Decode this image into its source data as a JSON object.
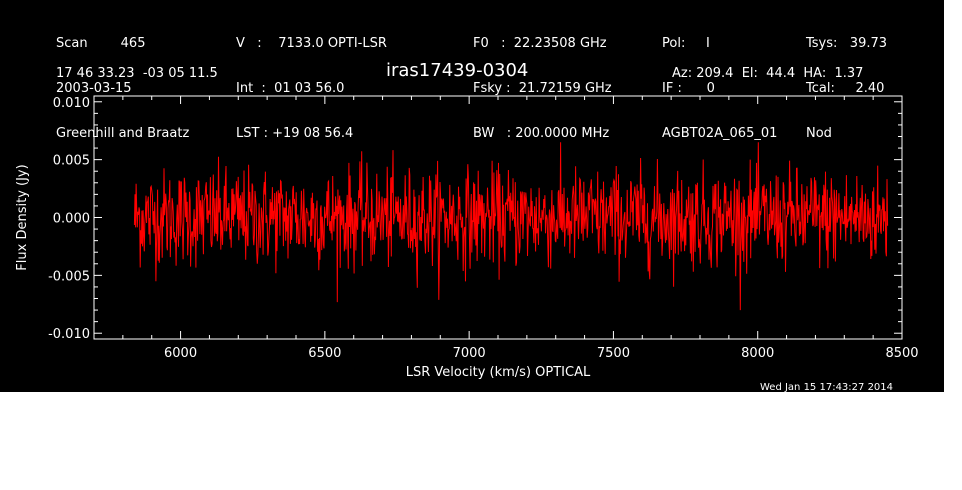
{
  "header": {
    "col1": [
      "Scan        465",
      "2003-03-15",
      "Greenhill and Braatz"
    ],
    "col2": [
      "V   :    7133.0 OPTI-LSR",
      "Int  :  01 03 56.0",
      "LST : +19 08 56.4"
    ],
    "col3": [
      "F0   :  22.23508 GHz",
      "Fsky :  21.72159 GHz",
      "BW   : 200.0000 MHz"
    ],
    "col4": [
      "Pol:     I",
      "IF :      0",
      "AGBT02A_065_01"
    ],
    "col5": [
      "Tsys:   39.73",
      "Tcal:     2.40",
      "Nod"
    ],
    "coords": "17 46 33.23  -03 05 11.5",
    "source": "iras17439-0304",
    "azel": "Az: 209.4  El:  44.4  HA:  1.37",
    "timestamp": "Wed Jan 15 17:43:27 2014"
  },
  "colors": {
    "background": "#000000",
    "axes": "#ffffff",
    "trace": "#ff0000"
  },
  "chart_data": {
    "type": "line",
    "xlabel": "LSR Velocity (km/s) OPTICAL",
    "ylabel": "Flux Density (Jy)",
    "xlim": [
      5700,
      8500
    ],
    "ylim": [
      -0.0105,
      0.0105
    ],
    "xticks": [
      6000,
      6500,
      7000,
      7500,
      8000,
      8500
    ],
    "xtick_labels": [
      "6000",
      "6500",
      "7000",
      "7500",
      "8000",
      "8500"
    ],
    "yticks": [
      -0.01,
      -0.005,
      0.0,
      0.005,
      0.01
    ],
    "ytick_labels": [
      "-0.010",
      "-0.005",
      "0.000",
      "0.005",
      "0.010"
    ],
    "x_start": 5840,
    "x_end": 8450,
    "series": [
      {
        "color": "#ff0000",
        "noise_rms": 0.0021,
        "mean": 0.0,
        "y_max": 0.0065,
        "y_min": -0.008
      }
    ]
  }
}
